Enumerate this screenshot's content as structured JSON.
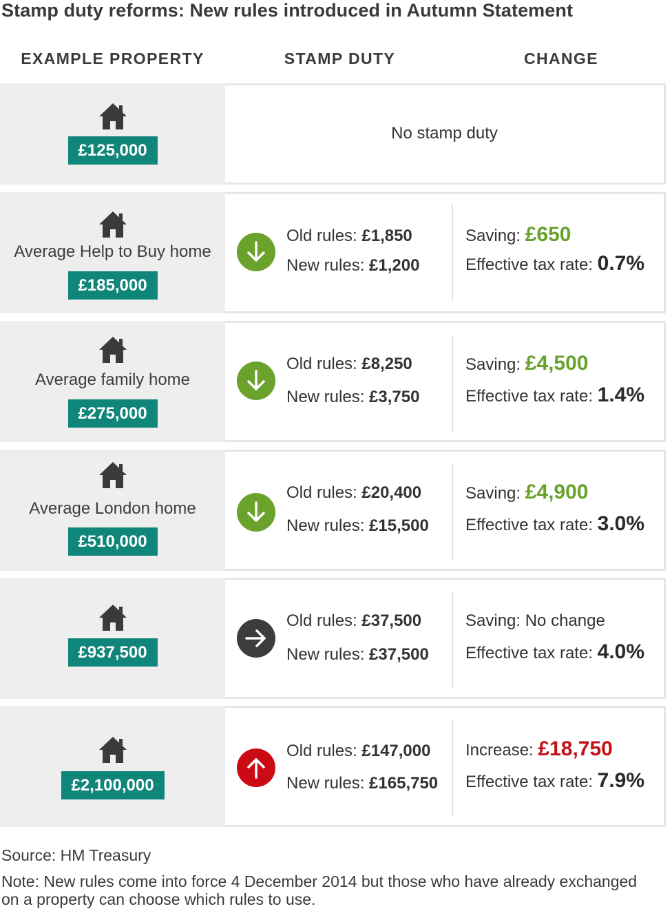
{
  "title": "Stamp duty reforms: New rules introduced in Autumn Statement",
  "headers": {
    "property": "EXAMPLE PROPERTY",
    "duty": "STAMP DUTY",
    "change": "CHANGE"
  },
  "colors": {
    "teal_price": "#10857a",
    "saving_green": "#67a22a",
    "increase_red": "#c60f19",
    "arrow_down_bg": "#6aa22c",
    "arrow_up_bg": "#cc0a14",
    "arrow_right_bg": "#3c3c3c"
  },
  "rows": [
    {
      "icon": "house-icon",
      "label": "",
      "price": "£125,000",
      "no_duty_text": "No stamp duty"
    },
    {
      "icon": "house-icon",
      "label": "Average Help to Buy home",
      "price": "£185,000",
      "arrow": "arrow-down-icon",
      "old_label": "Old rules: ",
      "old_value": "£1,850",
      "new_label": "New rules: ",
      "new_value": "£1,200",
      "change_label": "Saving: ",
      "change_value": "£650",
      "rate_label": "Effective tax rate: ",
      "rate_value": "0.7%"
    },
    {
      "icon": "house-icon",
      "label": "Average family home",
      "price": "£275,000",
      "arrow": "arrow-down-icon",
      "old_label": "Old rules: ",
      "old_value": "£8,250",
      "new_label": "New rules: ",
      "new_value": "£3,750",
      "change_label": "Saving: ",
      "change_value": "£4,500",
      "rate_label": "Effective tax rate: ",
      "rate_value": "1.4%"
    },
    {
      "icon": "house-icon",
      "label": "Average London home",
      "price": "£510,000",
      "arrow": "arrow-down-icon",
      "old_label": "Old rules: ",
      "old_value": "£20,400",
      "new_label": "New rules: ",
      "new_value": "£15,500",
      "change_label": "Saving: ",
      "change_value": "£4,900",
      "rate_label": "Effective tax rate: ",
      "rate_value": "3.0%"
    },
    {
      "icon": "house-icon",
      "label": "",
      "price": "£937,500",
      "arrow": "arrow-right-icon",
      "old_label": "Old rules: ",
      "old_value": "£37,500",
      "new_label": "New rules: ",
      "new_value": "£37,500",
      "change_text": "Saving: No change",
      "rate_label": "Effective tax rate: ",
      "rate_value": "4.0%"
    },
    {
      "icon": "house-icon",
      "label": "",
      "price": "£2,100,000",
      "arrow": "arrow-up-icon",
      "old_label": "Old rules: ",
      "old_value": "£147,000",
      "new_label": "New rules: ",
      "new_value": "£165,750",
      "change_label": "Increase: ",
      "change_value": "£18,750",
      "rate_label": "Effective tax rate: ",
      "rate_value": "7.9%"
    }
  ],
  "source": "Source: HM Treasury",
  "note": "Note: New rules come into force 4 December 2014 but those who have already exchanged on a property can choose which rules to use."
}
